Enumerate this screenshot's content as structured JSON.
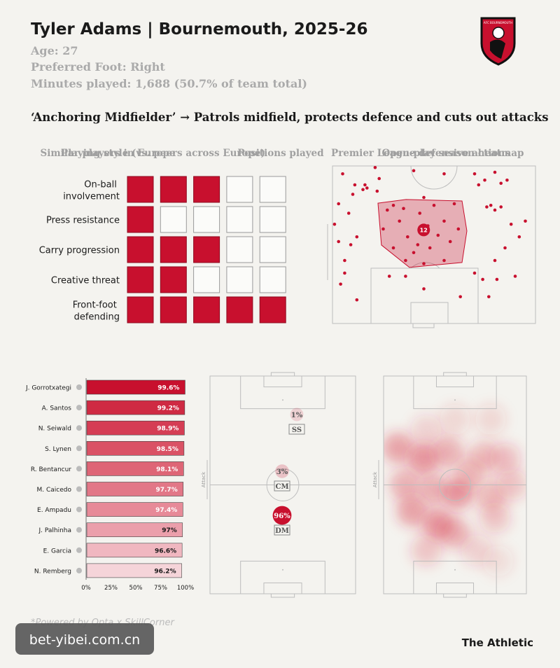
{
  "header": {
    "title": "Tyler Adams | Bournemouth, 2025-26",
    "age": "Age: 27",
    "foot": "Preferred Foot: Right",
    "minutes": "Minutes played: 1,688 (50.7% of team total)",
    "role": "‘Anchoring Midfielder’ → Patrols midfield, protects defence and cuts out attacks",
    "badge": "AFC BOURNEMOUTH"
  },
  "chart_data": [
    {
      "type": "grid",
      "title": "Playing style (vs. peers across Europe)",
      "categories": [
        "On-ball involvement",
        "Press resistance",
        "Carry progression",
        "Creative threat",
        "Front-foot defending"
      ],
      "values": [
        3,
        1,
        3,
        2,
        5
      ],
      "xlim": [
        0,
        5
      ],
      "color": "#c8102e"
    },
    {
      "type": "scatter",
      "title": "Premier League defensive actions",
      "color": "#c8102e",
      "label": "12",
      "xlim": [
        0,
        100
      ],
      "ylim": [
        0,
        100
      ],
      "x": [
        5,
        21,
        23,
        11,
        15,
        10,
        17,
        22,
        3,
        1,
        8,
        3,
        6,
        6,
        4,
        12,
        9,
        12,
        27,
        30,
        33,
        35,
        37,
        43,
        45,
        47,
        50,
        52,
        55,
        58,
        60,
        62,
        48,
        42,
        40,
        36,
        30,
        25,
        45,
        55,
        70,
        72,
        75,
        80,
        83,
        86,
        76,
        80,
        83,
        78,
        88,
        95,
        92,
        85,
        80,
        74,
        77,
        63,
        81,
        70,
        90,
        45,
        36,
        28,
        16,
        55,
        40
      ],
      "y": [
        5,
        1,
        8,
        12,
        15,
        18,
        14,
        16,
        24,
        37,
        30,
        48,
        60,
        68,
        75,
        85,
        50,
        45,
        28,
        25,
        35,
        27,
        45,
        30,
        20,
        38,
        25,
        44,
        35,
        48,
        24,
        40,
        52,
        50,
        55,
        60,
        52,
        40,
        62,
        60,
        5,
        12,
        9,
        4,
        11,
        9,
        26,
        28,
        26,
        25,
        37,
        35,
        45,
        52,
        60,
        72,
        83,
        83,
        72,
        68,
        70,
        78,
        70,
        70,
        12,
        5,
        3
      ],
      "area": {
        "x": [
          22.4,
          36.2,
          63.8,
          66.2,
          63.8,
          37.9,
          24.1
        ],
        "y": [
          23.6,
          21.3,
          22.2,
          41.3,
          61.3,
          64.4,
          50.2
        ]
      }
    },
    {
      "type": "bar",
      "title": "Similar players in Europe",
      "categories": [
        "J. Gorrotxategi",
        "A. Santos",
        "N. Seiwald",
        "S. Lynen",
        "R. Bentancur",
        "M. Caicedo",
        "E. Ampadu",
        "J. Palhinha",
        "E. Garcia",
        "N. Remberg"
      ],
      "values": [
        99.6,
        99.2,
        98.9,
        98.5,
        98.1,
        97.7,
        97.4,
        97,
        96.6,
        96.2
      ],
      "value_labels": [
        "99.6%",
        "99.2%",
        "98.9%",
        "98.5%",
        "98.1%",
        "97.7%",
        "97.4%",
        "97%",
        "96.6%",
        "96.2%"
      ],
      "colors": [
        "#c8102e",
        "#cf2a43",
        "#d53d54",
        "#da5265",
        "#de6576",
        "#e27787",
        "#e78a98",
        "#eb9fab",
        "#f0b7c0",
        "#f5d4d9"
      ],
      "xlim": [
        0,
        100
      ],
      "xticks": [
        {
          "value": 0,
          "label": "0%"
        },
        {
          "value": 25,
          "label": "25%"
        },
        {
          "value": 50,
          "label": "50%"
        },
        {
          "value": 75,
          "label": "75%"
        },
        {
          "value": 100,
          "label": "100%"
        }
      ]
    },
    {
      "type": "positions",
      "title": "Positions played",
      "axis_label": "Attack",
      "color": "#c8102e",
      "categories": [
        "SS",
        "CM",
        "DM"
      ],
      "values": [
        1,
        3,
        96
      ],
      "value_labels": [
        "1%",
        "3%",
        "96%"
      ]
    },
    {
      "type": "heatmap",
      "title": "Open-play season heatmap",
      "axis_label": "Attack",
      "color": "#d62a3a",
      "x": [
        10,
        28,
        45,
        70,
        85,
        15,
        35,
        52,
        75,
        20,
        38,
        50,
        78,
        90,
        60,
        30,
        65,
        50,
        75,
        80,
        30
      ],
      "y": [
        33,
        38,
        35,
        37,
        38,
        50,
        52,
        54,
        55,
        62,
        68,
        72,
        65,
        50,
        45,
        80,
        80,
        20,
        20,
        85,
        25
      ],
      "values": [
        0.7,
        0.8,
        0.6,
        0.5,
        0.45,
        0.6,
        0.6,
        0.8,
        0.5,
        0.7,
        0.8,
        0.6,
        0.4,
        0.4,
        0.5,
        0.4,
        0.3,
        0.25,
        0.25,
        0.2,
        0.3
      ]
    }
  ],
  "footer": {
    "source": "*Powered by Opta x SkillCorner",
    "brand": "The Athletic",
    "watermark": "bet-yibei.com.cn"
  }
}
